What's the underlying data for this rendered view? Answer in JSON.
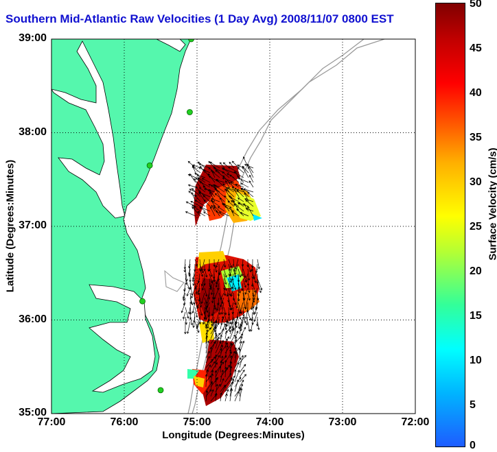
{
  "title": "Southern Mid-Atlantic Raw Velocities (1 Day Avg) 2008/11/07 0800 EST",
  "axes": {
    "xlabel": "Longitude (Degrees:Minutes)",
    "ylabel": "Latitude (Degrees:Minutes)",
    "xticks": [
      "77:00",
      "76:00",
      "75:00",
      "74:00",
      "73:00",
      "72:00"
    ],
    "yticks": [
      "39:00",
      "38:00",
      "37:00",
      "36:00",
      "35:00"
    ],
    "xlim": [
      -77,
      -72
    ],
    "ylim": [
      35,
      39
    ],
    "grid": true
  },
  "colorbar": {
    "label": "Surface Velocity (cm/s)",
    "ticks": [
      "50",
      "45",
      "40",
      "35",
      "30",
      "25",
      "20",
      "15",
      "10",
      "5",
      "0"
    ],
    "range": [
      0,
      50
    ]
  },
  "colors": {
    "land": "#55f7ad",
    "title": "#1010d0",
    "bathymetry": "#9a9a9a",
    "station": "#22d022"
  },
  "stations": [
    {
      "lon": -75.08,
      "lat": 39.0
    },
    {
      "lon": -75.1,
      "lat": 38.22
    },
    {
      "lon": -75.65,
      "lat": 37.65
    },
    {
      "lon": -75.75,
      "lat": 36.2
    },
    {
      "lon": -75.5,
      "lat": 35.25
    }
  ]
}
